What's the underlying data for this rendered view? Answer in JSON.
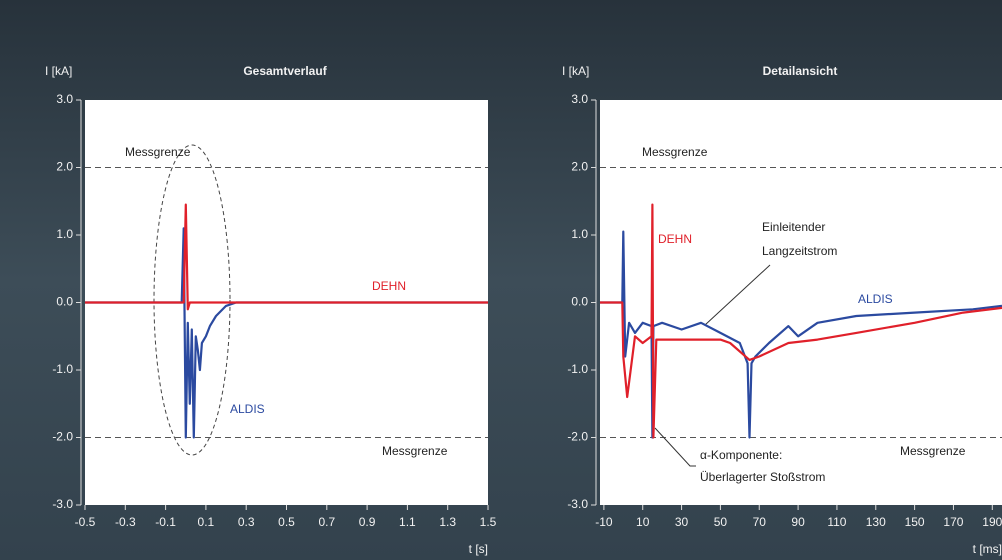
{
  "chart_data": [
    {
      "type": "line",
      "title": "Gesamtverlauf",
      "y_label": "I [kA]",
      "x_label": "t [s]",
      "xlim": [
        -0.5,
        1.5
      ],
      "xticks": [
        -0.5,
        -0.3,
        -0.1,
        0.1,
        0.3,
        0.5,
        0.7,
        0.9,
        1.1,
        1.3,
        1.5
      ],
      "ylim": [
        -3,
        3
      ],
      "yticks": [
        {
          "value": 3,
          "label": "3.0"
        },
        {
          "value": 2,
          "label": "2.0"
        },
        {
          "value": 1,
          "label": "1.0"
        },
        {
          "value": 0,
          "label": "0.0"
        },
        {
          "value": -1,
          "label": "-1.0"
        },
        {
          "value": -2,
          "label": "-2.0"
        },
        {
          "value": -3,
          "label": "-3.0"
        }
      ],
      "reference_lines": [
        2,
        -2
      ],
      "annotations": [
        "Messgrenze",
        "Messgrenze"
      ],
      "series": [
        {
          "name": "ALDIS",
          "color": "#2b4aa0",
          "x": [
            -0.5,
            -0.02,
            -0.01,
            0.0,
            0.01,
            0.02,
            0.03,
            0.04,
            0.05,
            0.06,
            0.07,
            0.08,
            0.1,
            0.12,
            0.15,
            0.2,
            0.25,
            1.5
          ],
          "values": [
            0,
            0,
            1.1,
            -2.0,
            -0.3,
            -1.5,
            -0.4,
            -2.0,
            -0.5,
            -0.7,
            -1.0,
            -0.6,
            -0.5,
            -0.35,
            -0.2,
            -0.05,
            0,
            0
          ]
        },
        {
          "name": "DEHN",
          "color": "#e0202a",
          "x": [
            -0.5,
            -0.01,
            0.0,
            0.01,
            0.02,
            1.5
          ],
          "values": [
            0,
            0,
            1.45,
            -0.1,
            0,
            0
          ]
        }
      ]
    },
    {
      "type": "line",
      "title": "Detailansicht",
      "y_label": "I [kA]",
      "x_label": "t [ms]",
      "xlim": [
        -12,
        195
      ],
      "xticks": [
        -10,
        10,
        30,
        50,
        70,
        90,
        110,
        130,
        150,
        170,
        190
      ],
      "ylim": [
        -3,
        3
      ],
      "yticks": [
        {
          "value": 3,
          "label": "3.0"
        },
        {
          "value": 2,
          "label": "2.0"
        },
        {
          "value": 1,
          "label": "1.0"
        },
        {
          "value": 0,
          "label": "0.0"
        },
        {
          "value": -1,
          "label": "-1.0"
        },
        {
          "value": -2,
          "label": "-2.0"
        },
        {
          "value": -3,
          "label": "-3.0"
        }
      ],
      "reference_lines": [
        2,
        -2
      ],
      "annotations": [
        "Messgrenze",
        "Messgrenze",
        "Einleitender",
        "Langzeitstrom",
        "α-Komponente:",
        "Überlagerter Stoßstrom"
      ],
      "series": [
        {
          "name": "ALDIS",
          "color": "#2b4aa0",
          "x": [
            -12,
            -0.5,
            0,
            1,
            3,
            6,
            10,
            14.5,
            15,
            15.5,
            20,
            30,
            40,
            50,
            60,
            64,
            65,
            66,
            68,
            75,
            85,
            90,
            100,
            120,
            150,
            180,
            195
          ],
          "values": [
            0,
            0,
            1.05,
            -0.8,
            -0.3,
            -0.45,
            -0.3,
            -0.35,
            -2.0,
            -0.35,
            -0.3,
            -0.4,
            -0.3,
            -0.45,
            -0.6,
            -0.9,
            -2.0,
            -0.9,
            -0.8,
            -0.6,
            -0.35,
            -0.5,
            -0.3,
            -0.2,
            -0.15,
            -0.1,
            -0.05
          ]
        },
        {
          "name": "DEHN",
          "color": "#e0202a",
          "x": [
            -12,
            -0.5,
            0,
            2,
            6,
            10,
            14.5,
            15,
            15.5,
            17,
            20,
            35,
            50,
            55,
            65,
            70,
            85,
            100,
            120,
            150,
            175,
            195
          ],
          "values": [
            0,
            0,
            -0.8,
            -1.4,
            -0.5,
            -0.6,
            -0.5,
            1.45,
            -2.0,
            -0.55,
            -0.55,
            -0.55,
            -0.55,
            -0.6,
            -0.85,
            -0.8,
            -0.6,
            -0.55,
            -0.45,
            -0.3,
            -0.15,
            -0.08
          ]
        }
      ]
    }
  ]
}
